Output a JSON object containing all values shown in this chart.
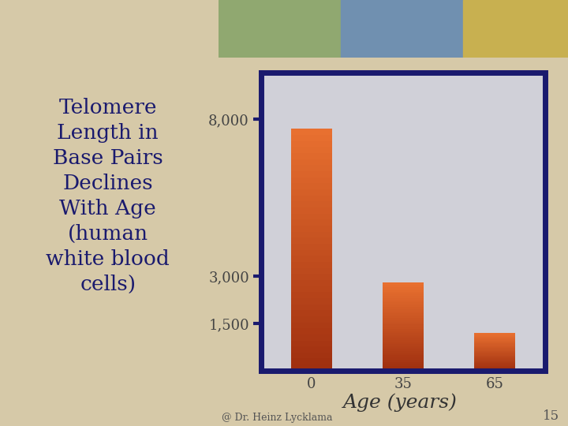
{
  "categories": [
    "0",
    "35",
    "65"
  ],
  "values": [
    7700,
    2800,
    1200
  ],
  "yticks": [
    1500,
    3000,
    8000
  ],
  "ytick_labels": [
    "1,500",
    "3,000",
    "8,000"
  ],
  "xlabel": "Age (years)",
  "footnote": "@ Dr. Heinz Lycklama",
  "page_num": "15",
  "title_text": "Telomere\nLength in\nBase Pairs\nDeclines\nWith Age\n(human\nwhite blood\ncells)",
  "chart_bg": "#d0d0d8",
  "chart_border": "#1a1a6e",
  "left_bg": "#d6c9a8",
  "right_bg": "#d0d0d8",
  "axis_color": "#1a1a6e",
  "bar_color_light": "#e87030",
  "bar_color_dark": "#a03010",
  "bar_width": 0.45,
  "ylim": [
    0,
    9500
  ],
  "xlabel_fontsize": 18,
  "tick_fontsize": 13,
  "title_fontsize": 19,
  "footnote_fontsize": 9,
  "page_num_fontsize": 12,
  "title_color": "#1a1a6e",
  "tick_color": "#444444"
}
